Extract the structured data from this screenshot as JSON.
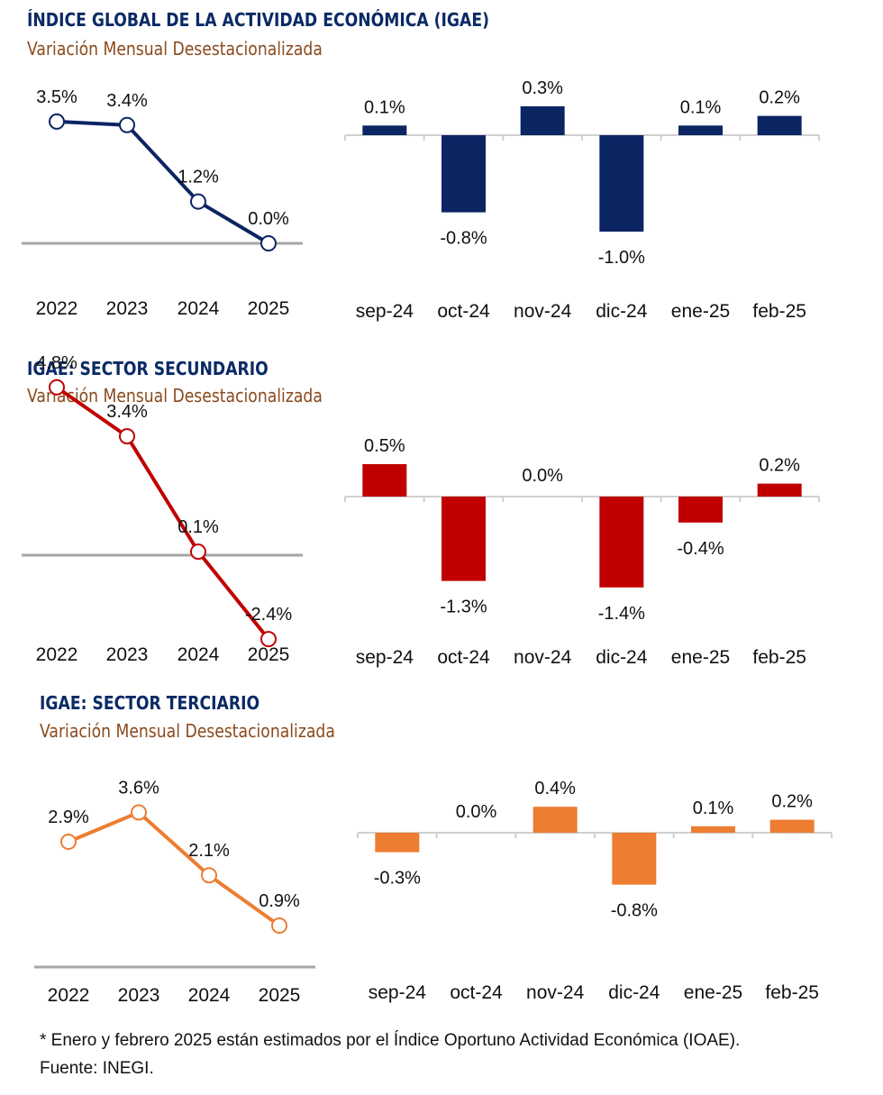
{
  "panels": [
    {
      "title": "ÍNDICE GLOBAL DE LA ACTIVIDAD ECONÓMICA (IGAE)",
      "subtitle": "Variación Mensual Desestacionalizada",
      "color": "#0b2462",
      "annual": {
        "type": "line",
        "x": [
          "2022",
          "2023",
          "2024",
          "2025"
        ],
        "values": [
          3.5,
          3.4,
          1.2,
          0.0
        ],
        "labels": [
          "3.5%",
          "3.4%",
          "1.2%",
          "0.0%"
        ]
      },
      "monthly": {
        "type": "bar",
        "categories": [
          "sep-24",
          "oct-24",
          "nov-24",
          "dic-24",
          "ene-25",
          "feb-25"
        ],
        "values": [
          0.1,
          -0.8,
          0.3,
          -1.0,
          0.1,
          0.2
        ],
        "labels": [
          "0.1%",
          "-0.8%",
          "0.3%",
          "-1.0%",
          "0.1%",
          "0.2%"
        ]
      }
    },
    {
      "title": "IGAE: SECTOR SECUNDARIO",
      "subtitle": "Variación Mensual Desestacionalizada",
      "color": "#c00000",
      "annual": {
        "type": "line",
        "x": [
          "2022",
          "2023",
          "2024",
          "2025"
        ],
        "values": [
          4.8,
          3.4,
          0.1,
          -2.4
        ],
        "labels": [
          "4.8%",
          "3.4%",
          "0.1%",
          "-2.4%"
        ]
      },
      "monthly": {
        "type": "bar",
        "categories": [
          "sep-24",
          "oct-24",
          "nov-24",
          "dic-24",
          "ene-25",
          "feb-25"
        ],
        "values": [
          0.5,
          -1.3,
          0.0,
          -1.4,
          -0.4,
          0.2
        ],
        "labels": [
          "0.5%",
          "-1.3%",
          "0.0%",
          "-1.4%",
          "-0.4%",
          "0.2%"
        ]
      }
    },
    {
      "title": "IGAE: SECTOR TERCIARIO",
      "subtitle": "Variación Mensual Desestacionalizada",
      "color": "#ed7d31",
      "annual": {
        "type": "line",
        "x": [
          "2022",
          "2023",
          "2024",
          "2025"
        ],
        "values": [
          2.9,
          3.6,
          2.1,
          0.9
        ],
        "labels": [
          "2.9%",
          "3.6%",
          "2.1%",
          "0.9%"
        ]
      },
      "monthly": {
        "type": "bar",
        "categories": [
          "sep-24",
          "oct-24",
          "nov-24",
          "dic-24",
          "ene-25",
          "feb-25"
        ],
        "values": [
          -0.3,
          0.0,
          0.4,
          -0.8,
          0.1,
          0.2
        ],
        "labels": [
          "-0.3%",
          "0.0%",
          "0.4%",
          "-0.8%",
          "0.1%",
          "0.2%"
        ]
      }
    }
  ],
  "footer": {
    "note": "* Enero y febrero 2025 están estimados por el Índice Oportuno Actividad Económica (IOAE).",
    "source": "Fuente:   INEGI."
  }
}
